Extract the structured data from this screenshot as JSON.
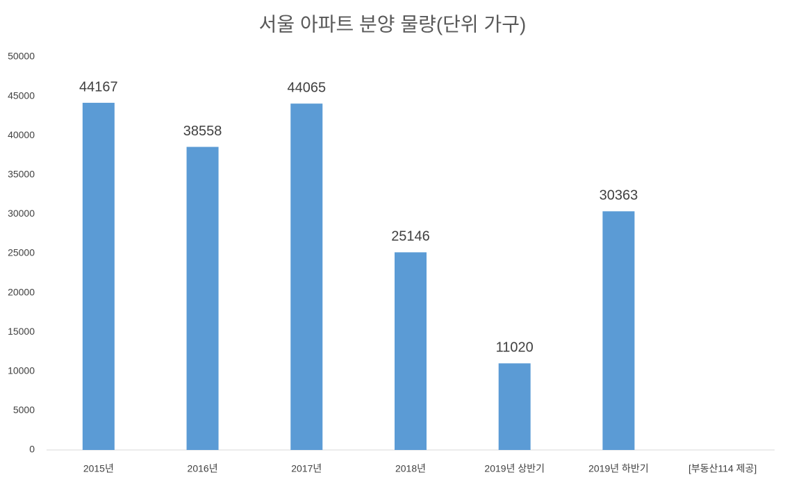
{
  "chart_data": {
    "type": "bar",
    "title": "서울 아파트 분양 물량(단위 가구)",
    "categories": [
      "2015년",
      "2016년",
      "2017년",
      "2018년",
      "2019년 상반기",
      "2019년 하반기",
      "[부동산114 제공]"
    ],
    "values": [
      44167,
      38558,
      44065,
      25146,
      11020,
      30363,
      null
    ],
    "color": "#5b9bd5",
    "ylim": [
      0,
      50000
    ],
    "yticks": [
      0,
      5000,
      10000,
      15000,
      20000,
      25000,
      30000,
      35000,
      40000,
      45000,
      50000
    ],
    "grid": false
  }
}
